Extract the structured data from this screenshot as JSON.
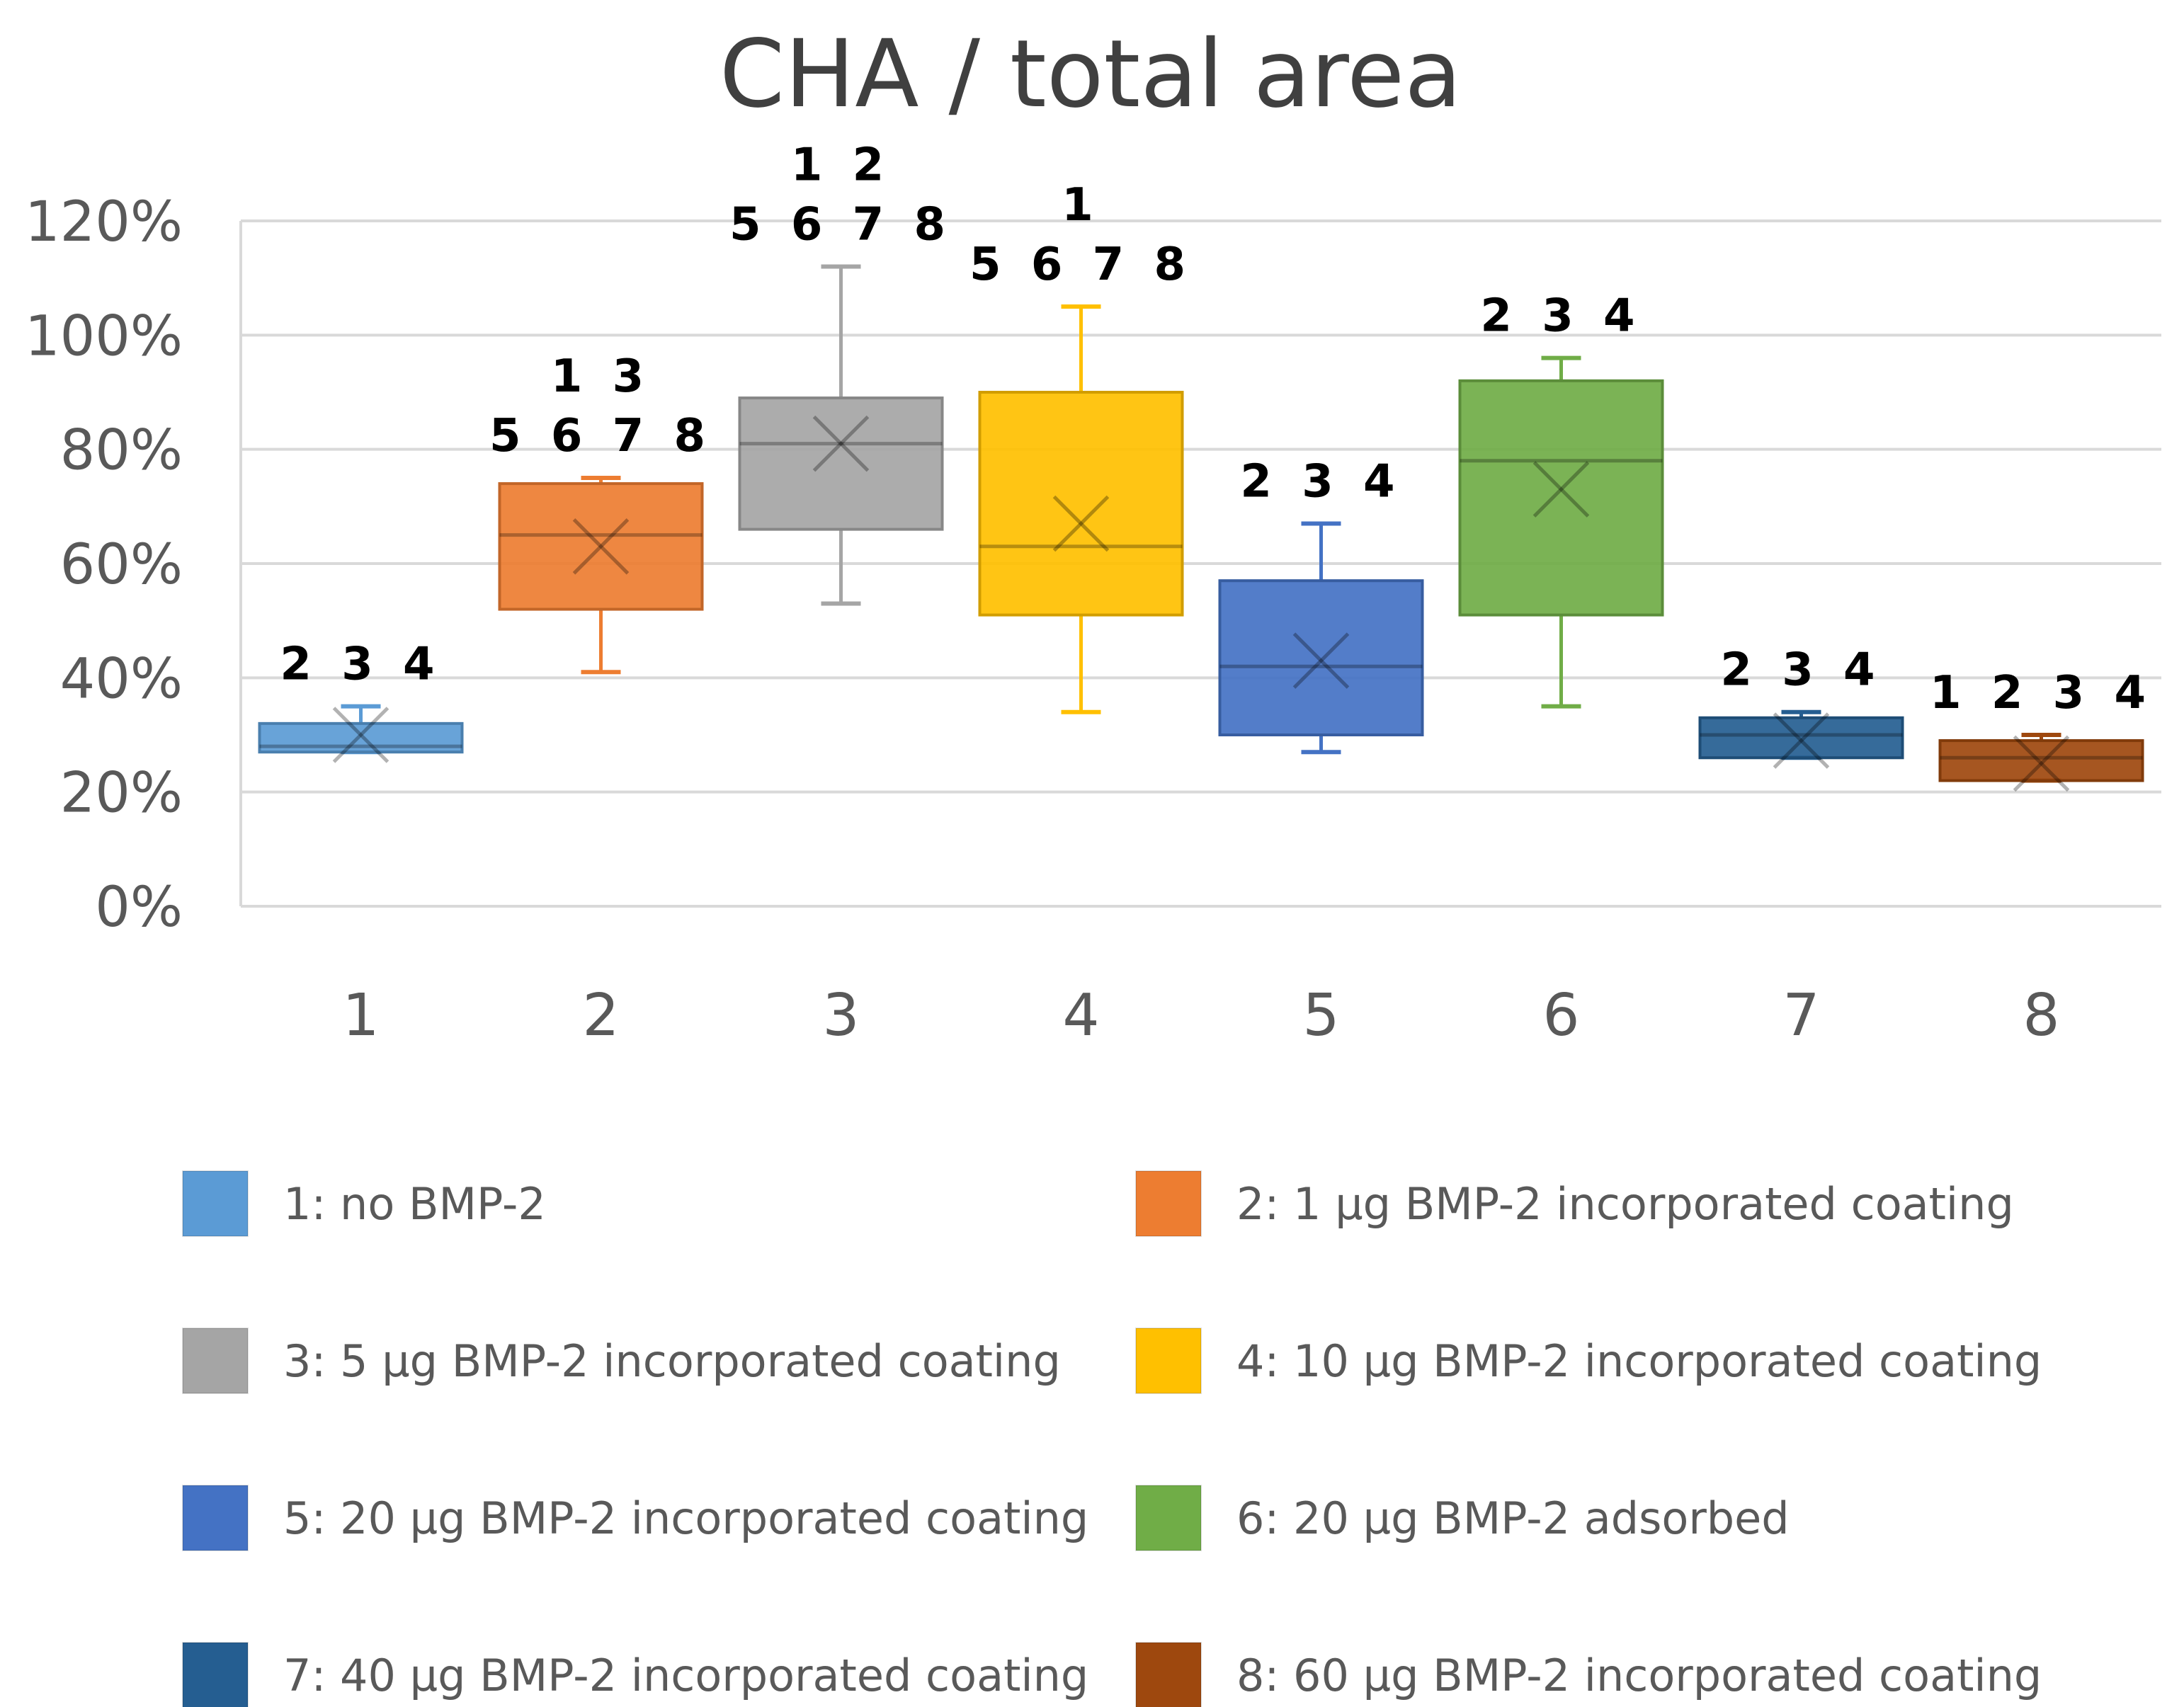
{
  "chart_data": {
    "type": "box",
    "title": "CHA / total area",
    "xlabel": "",
    "ylabel": "",
    "ylim": [
      0,
      120
    ],
    "yticks": [
      "0%",
      "20%",
      "40%",
      "60%",
      "80%",
      "100%",
      "120%"
    ],
    "grid": true,
    "legend_position": "bottom",
    "categories": [
      "1",
      "2",
      "3",
      "4",
      "5",
      "6",
      "7",
      "8"
    ],
    "series": [
      {
        "category": "1",
        "name": "no BMP-2",
        "legend_label": "1:  no BMP-2",
        "color": "#5b9bd5",
        "min": 27,
        "q1": 27,
        "median": 28,
        "q3": 32,
        "max": 35,
        "mean": 30,
        "significance": [
          "2 3 4"
        ]
      },
      {
        "category": "2",
        "name": "1 µg BMP-2 incorporated coating",
        "legend_label": "2:  1 µg BMP-2 incorporated coating",
        "color": "#ed7d31",
        "min": 41,
        "q1": 52,
        "median": 65,
        "q3": 74,
        "max": 75,
        "mean": 63,
        "significance": [
          "1 3",
          "5 6 7 8"
        ]
      },
      {
        "category": "3",
        "name": "5 µg BMP-2 incorporated coating",
        "legend_label": "3:  5 µg BMP-2 incorporated coating",
        "color": "#a5a5a5",
        "min": 53,
        "q1": 66,
        "median": 81,
        "q3": 89,
        "max": 112,
        "mean": 81,
        "significance": [
          "1 2",
          "5 6 7 8"
        ]
      },
      {
        "category": "4",
        "name": "10 µg BMP-2 incorporated coating",
        "legend_label": "4:  10 µg BMP-2 incorporated coating",
        "color": "#ffc000",
        "min": 34,
        "q1": 51,
        "median": 63,
        "q3": 90,
        "max": 105,
        "mean": 67,
        "significance": [
          "1",
          "5 6 7 8"
        ]
      },
      {
        "category": "5",
        "name": "20 µg BMP-2 incorporated coating",
        "legend_label": "5:  20 µg BMP-2 incorporated coating",
        "color": "#4472c4",
        "min": 27,
        "q1": 30,
        "median": 42,
        "q3": 57,
        "max": 67,
        "mean": 43,
        "significance": [
          "2 3 4"
        ]
      },
      {
        "category": "6",
        "name": "20 µg BMP-2 adsorbed",
        "legend_label": "6:  20 µg BMP-2 adsorbed",
        "color": "#70ad47",
        "min": 35,
        "q1": 51,
        "median": 78,
        "q3": 92,
        "max": 96,
        "mean": 73,
        "significance": [
          "2 3 4"
        ]
      },
      {
        "category": "7",
        "name": "40 µg BMP-2 incorporated coating",
        "legend_label": "7:  40 µg BMP-2 incorporated coating",
        "color": "#255e91",
        "min": 26,
        "q1": 26,
        "median": 30,
        "q3": 33,
        "max": 34,
        "mean": 29,
        "significance": [
          "2 3 4"
        ]
      },
      {
        "category": "8",
        "name": "60 µg BMP-2 incorporated coating",
        "legend_label": "8:  60 µg BMP-2 incorporated coating",
        "color": "#9e480e",
        "min": 22,
        "q1": 22,
        "median": 26,
        "q3": 29,
        "max": 30,
        "mean": 25,
        "significance": [
          "1 2 3 4"
        ]
      }
    ]
  }
}
